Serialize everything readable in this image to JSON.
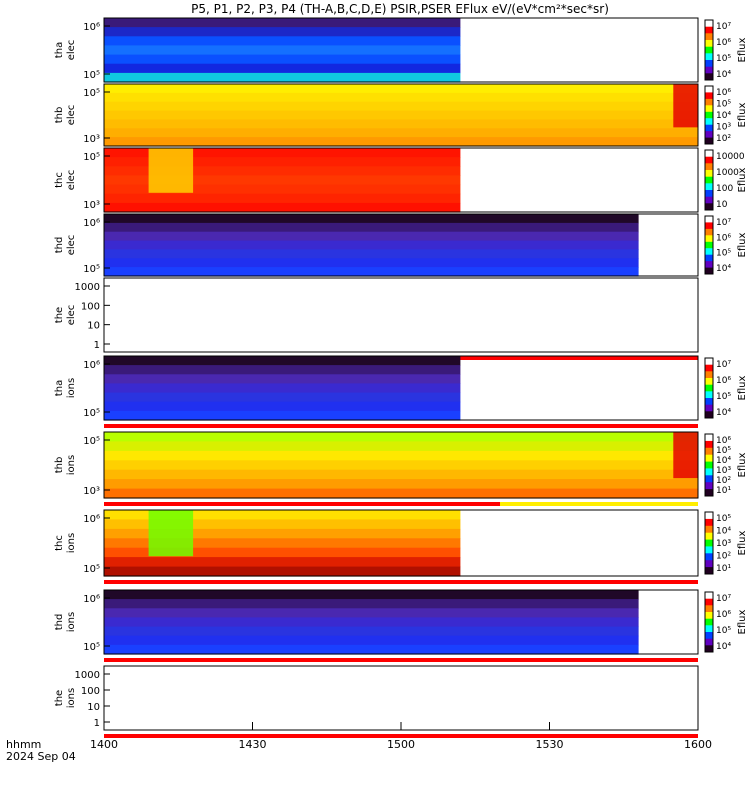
{
  "chart_data": {
    "type": "heatmap",
    "title": "P5, P1, P2, P3, P4 (TH-A,B,C,D,E) PSIR,PSER EFlux eV/(eV*cm²*sec*sr)",
    "x_axis": {
      "label_line1": "hhmm",
      "label_line2": "2024 Sep 04",
      "range": [
        "1400",
        "1600"
      ],
      "tick_labels": [
        "1400",
        "1430",
        "1500",
        "1530",
        "1600"
      ]
    },
    "colorbar_label": "Eflux",
    "panels": [
      {
        "label1": "tha",
        "label2": "elec",
        "data_until": "1512",
        "y_ticks": [
          "10⁶",
          "10⁵"
        ],
        "cbar_ticks": [
          "10⁷",
          "10⁶",
          "10⁵",
          "10⁴"
        ],
        "palette": "blue-low",
        "status_bar": null,
        "marks": []
      },
      {
        "label1": "thb",
        "label2": "elec",
        "data_until": "1600",
        "y_ticks": [
          "10⁵",
          "10³"
        ],
        "cbar_ticks": [
          "10⁶",
          "10⁵",
          "10⁴",
          "10³",
          "10²"
        ],
        "palette": "yellow-high",
        "status_bar": null,
        "marks": [
          {
            "from": "1555",
            "to": "1600",
            "level": "high"
          }
        ]
      },
      {
        "label1": "thc",
        "label2": "elec",
        "data_until": "1512",
        "y_ticks": [
          "10⁵",
          "10³"
        ],
        "cbar_ticks": [
          "10000",
          "1000",
          "100",
          "10"
        ],
        "palette": "red-high",
        "status_bar": null,
        "marks": [
          {
            "from": "1409",
            "to": "1418",
            "level": "medium"
          }
        ]
      },
      {
        "label1": "thd",
        "label2": "elec",
        "data_until": "1548",
        "y_ticks": [
          "10⁶",
          "10⁵"
        ],
        "cbar_ticks": [
          "10⁷",
          "10⁶",
          "10⁵",
          "10⁴"
        ],
        "palette": "purple-low",
        "status_bar": null,
        "marks": []
      },
      {
        "label1": "the",
        "label2": "elec",
        "data_until": "1400",
        "y_ticks": [
          "1000",
          "100",
          "10",
          "1"
        ],
        "cbar_ticks": [],
        "palette": "none",
        "status_bar": "red",
        "marks": []
      },
      {
        "label1": "tha",
        "label2": "ions",
        "data_until": "1512",
        "y_ticks": [
          "10⁶",
          "10⁵"
        ],
        "cbar_ticks": [
          "10⁷",
          "10⁶",
          "10⁵",
          "10⁴"
        ],
        "palette": "purple-low",
        "status_bar": "red",
        "marks": []
      },
      {
        "label1": "thb",
        "label2": "ions",
        "data_until": "1600",
        "y_ticks": [
          "10⁵",
          "10³"
        ],
        "cbar_ticks": [
          "10⁶",
          "10⁵",
          "10⁴",
          "10³",
          "10²",
          "10¹"
        ],
        "palette": "green-yellow",
        "status_bar": "red-yellow",
        "marks": [
          {
            "from": "1555",
            "to": "1600",
            "level": "high"
          }
        ]
      },
      {
        "label1": "thc",
        "label2": "ions",
        "data_until": "1512",
        "y_ticks": [
          "10⁶",
          "10⁵"
        ],
        "cbar_ticks": [
          "10⁵",
          "10⁴",
          "10³",
          "10²",
          "10¹"
        ],
        "palette": "orange-mixed",
        "status_bar": "red",
        "marks": [
          {
            "from": "1409",
            "to": "1418",
            "level": "low"
          }
        ]
      },
      {
        "label1": "thd",
        "label2": "ions",
        "data_until": "1548",
        "y_ticks": [
          "10⁶",
          "10⁵"
        ],
        "cbar_ticks": [
          "10⁷",
          "10⁶",
          "10⁵",
          "10⁴"
        ],
        "palette": "purple-low",
        "status_bar": "red",
        "marks": []
      },
      {
        "label1": "the",
        "label2": "ions",
        "data_until": "1400",
        "y_ticks": [
          "1000",
          "100",
          "10",
          "1"
        ],
        "cbar_ticks": [],
        "palette": "none",
        "status_bar": "red",
        "marks": []
      }
    ]
  }
}
